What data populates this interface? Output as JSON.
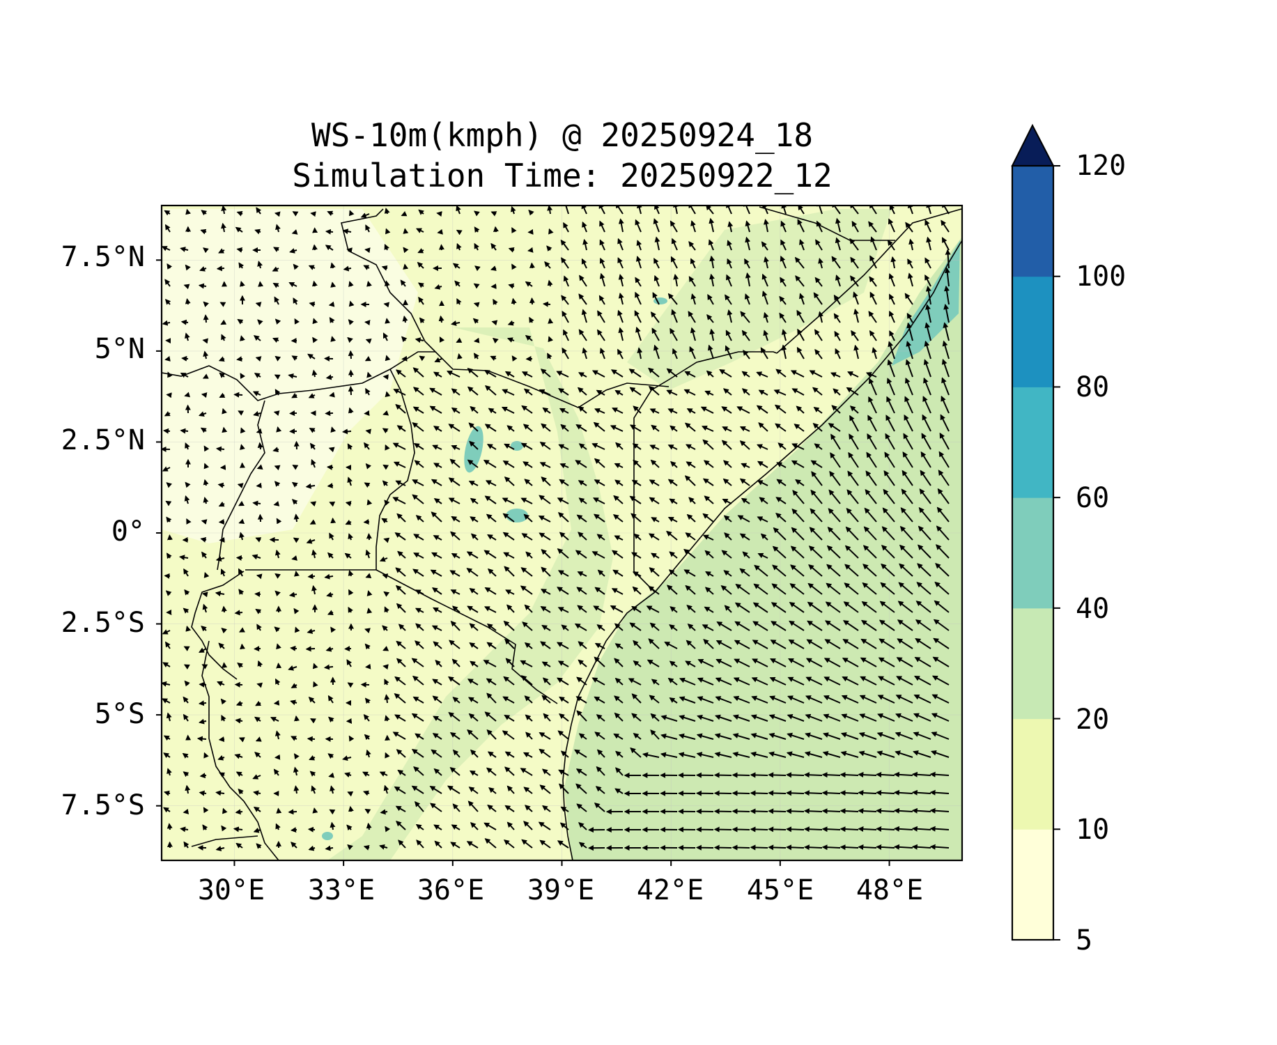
{
  "title_line1": "WS-10m(kmph) @ 20250924_18",
  "title_line2": "Simulation Time: 20250922_12",
  "map": {
    "lon_range": [
      28.0,
      50.0
    ],
    "lat_range": [
      -9.0,
      9.0
    ],
    "x_ticks": [
      "30°E",
      "33°E",
      "36°E",
      "39°E",
      "42°E",
      "45°E",
      "48°E"
    ],
    "y_ticks": [
      "7.5°N",
      "5°N",
      "2.5°N",
      "0°",
      "2.5°S",
      "5°S",
      "7.5°S"
    ],
    "gridlines": true,
    "vector_field": "10 m wind arrows"
  },
  "colorbar": {
    "levels": [
      "5",
      "10",
      "20",
      "40",
      "60",
      "80",
      "100",
      "120"
    ],
    "colors": [
      "#ffffd9",
      "#edf8b1",
      "#c7e9b4",
      "#7fcdbb",
      "#41b6c4",
      "#1d91c0",
      "#225ea8",
      "#0c2c84"
    ],
    "extend": "max",
    "extend_color": "#081d58"
  }
}
